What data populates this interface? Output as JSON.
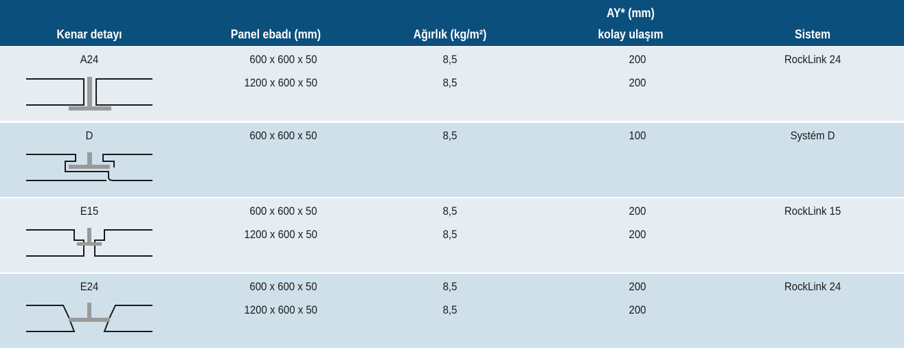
{
  "header": {
    "edge": "Kenar detayı",
    "size": "Panel ebadı (mm)",
    "weight": "Ağırlık (kg/m²)",
    "access": [
      "AY* (mm)",
      "kolay ulaşım"
    ],
    "system": "Sistem"
  },
  "rows": [
    {
      "edge": "A24",
      "sizes": [
        "600 x 600 x 50",
        "1200 x 600 x 50"
      ],
      "weights": [
        "8,5",
        "8,5"
      ],
      "access": [
        200,
        200
      ],
      "system": "RockLink 24"
    },
    {
      "edge": "D",
      "sizes": [
        "600 x 600 x 50"
      ],
      "weights": [
        "8,5"
      ],
      "access": [
        100
      ],
      "system": "Systém D"
    },
    {
      "edge": "E15",
      "sizes": [
        "600 x 600 x 50",
        "1200 x 600 x 50"
      ],
      "weights": [
        "8,5",
        "8,5"
      ],
      "access": [
        200,
        200
      ],
      "system": "RockLink 15"
    },
    {
      "edge": "E24",
      "sizes": [
        "600 x 600 x 50",
        "1200 x 600 x 50"
      ],
      "weights": [
        "8,5",
        "8,5"
      ],
      "access": [
        200,
        200
      ],
      "system": "RockLink 24"
    }
  ]
}
